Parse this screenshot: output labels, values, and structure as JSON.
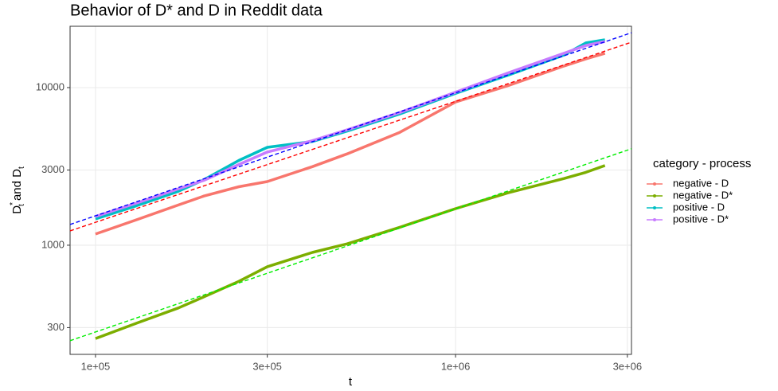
{
  "chart_data": {
    "type": "line",
    "title": "Behavior of D* and D in Reddit data",
    "x_label": "t",
    "y_label_parts": [
      "D",
      "*",
      "t",
      " and D",
      "t"
    ],
    "legend_title": "category - process",
    "log_x": true,
    "log_y": true,
    "grid": true,
    "legend": "right",
    "xlim": [
      85000,
      3080000
    ],
    "ylim": [
      203,
      24490
    ],
    "xticks": [
      {
        "value": 100000,
        "label": "1e+05"
      },
      {
        "value": 300000,
        "label": "3e+05"
      },
      {
        "value": 1000000,
        "label": "1e+06"
      },
      {
        "value": 3000000,
        "label": "3e+06"
      }
    ],
    "yticks": [
      300,
      1000,
      3000,
      10000
    ],
    "x": [
      100000,
      130000,
      170000,
      200000,
      250000,
      300000,
      400000,
      500000,
      700000,
      1000000,
      1400000,
      2000000,
      2300000,
      2600000
    ],
    "series": [
      {
        "name": "negative - D",
        "color": "#F8766D",
        "values": [
          1177,
          1450,
          1800,
          2050,
          2350,
          2535,
          3150,
          3800,
          5200,
          8100,
          10300,
          13700,
          15200,
          16500
        ]
      },
      {
        "name": "negative - D*",
        "color": "#7CAE00",
        "values": [
          256,
          320,
          400,
          470,
          590,
          731,
          900,
          1020,
          1300,
          1707,
          2150,
          2650,
          2900,
          3200
        ]
      },
      {
        "name": "positive - D",
        "color": "#00BFC4",
        "values": [
          1468,
          1780,
          2200,
          2600,
          3450,
          4180,
          4550,
          5300,
          6800,
          9200,
          12000,
          16100,
          19200,
          20100
        ]
      },
      {
        "name": "positive - D*",
        "color": "#C77CFF",
        "values": [
          1520,
          1850,
          2280,
          2580,
          3250,
          3900,
          4600,
          5400,
          6950,
          9350,
          12400,
          16500,
          18500,
          19600
        ]
      }
    ],
    "fit_lines": [
      {
        "color": "#FF0000",
        "x": [
          85000,
          3080000
        ],
        "values": [
          1233,
          19400
        ]
      },
      {
        "color": "#0000FF",
        "x": [
          85000,
          3080000
        ],
        "values": [
          1353,
          22290
        ]
      },
      {
        "color": "#00EE00",
        "x": [
          85000,
          3080000
        ],
        "values": [
          248,
          4090
        ]
      }
    ]
  }
}
